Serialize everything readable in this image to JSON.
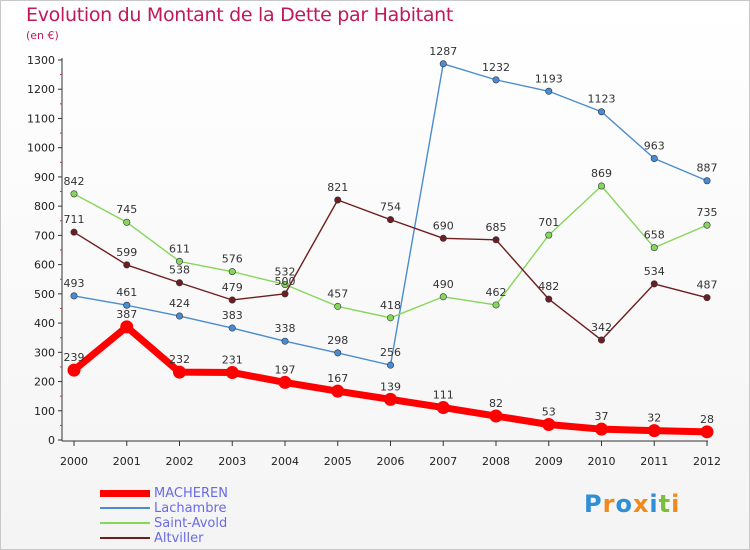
{
  "title": "Evolution du Montant de la Dette par Habitant",
  "subtitle": "(en €)",
  "chart_data": {
    "type": "line",
    "title": "Evolution du Montant de la Dette par Habitant",
    "ylabel": "(en €)",
    "xlabel": "",
    "x": [
      "2000",
      "2001",
      "2002",
      "2003",
      "2004",
      "2005",
      "2006",
      "2007",
      "2008",
      "2009",
      "2010",
      "2011",
      "2012"
    ],
    "ylim": [
      0,
      1300
    ],
    "yticks": [
      0,
      100,
      200,
      300,
      400,
      500,
      600,
      700,
      800,
      900,
      1000,
      1100,
      1200,
      1300
    ],
    "grid": false,
    "legend_position": "bottom-left",
    "series": [
      {
        "name": "MACHEREN",
        "color": "#ff0000",
        "values": [
          239,
          387,
          232,
          231,
          197,
          167,
          139,
          111,
          82,
          53,
          37,
          32,
          28
        ]
      },
      {
        "name": "Lachambre",
        "color": "#4a8cd0",
        "values": [
          493,
          461,
          424,
          383,
          338,
          298,
          256,
          1287,
          1232,
          1193,
          1123,
          963,
          887
        ]
      },
      {
        "name": "Saint-Avold",
        "color": "#86d65a",
        "values": [
          842,
          745,
          611,
          576,
          532,
          457,
          418,
          490,
          462,
          701,
          869,
          658,
          735
        ]
      },
      {
        "name": "Altviller",
        "color": "#6e1e1e",
        "values": [
          711,
          599,
          538,
          479,
          500,
          821,
          754,
          690,
          685,
          482,
          342,
          534,
          487
        ]
      }
    ]
  },
  "logo": {
    "text": "Proxiti",
    "letters": [
      {
        "ch": "P",
        "color": "#2f8fd6"
      },
      {
        "ch": "r",
        "color": "#f08a1c"
      },
      {
        "ch": "o",
        "color": "#2f8fd6"
      },
      {
        "ch": "x",
        "color": "#f08a1c"
      },
      {
        "ch": "i",
        "color": "#2f8fd6"
      },
      {
        "ch": "t",
        "color": "#7bbf3a"
      },
      {
        "ch": "i",
        "color": "#f08a1c"
      }
    ]
  }
}
